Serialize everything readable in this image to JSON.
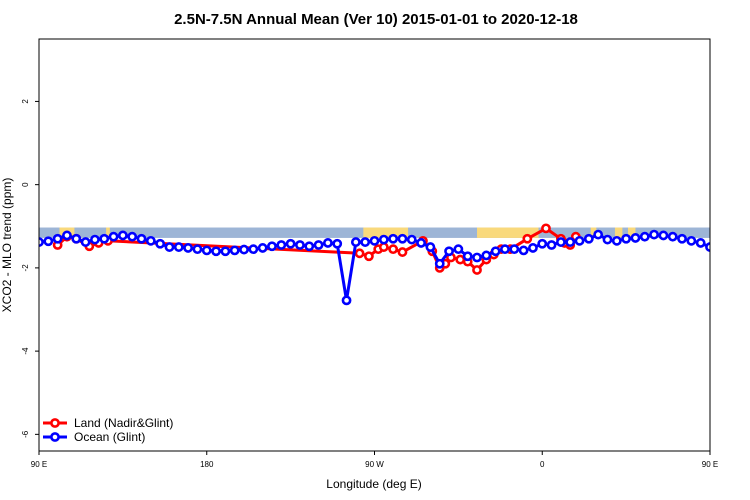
{
  "chart_data": {
    "type": "line",
    "title": "2.5N-7.5N Annual Mean (Ver 10)   2015-01-01 to 2020-12-18",
    "xlabel": "Longitude (deg E)",
    "ylabel": "XCO2 - MLO trend (ppm)",
    "xlim": [
      90,
      450
    ],
    "ylim": [
      -6.4,
      3.5
    ],
    "x_ticks": [
      {
        "value": 90,
        "label": "90 E"
      },
      {
        "value": 180,
        "label": "180"
      },
      {
        "value": 270,
        "label": "90 W"
      },
      {
        "value": 360,
        "label": "0"
      },
      {
        "value": 450,
        "label": "90 E"
      },
      {
        "value": 540,
        "label": "180"
      }
    ],
    "y_ticks": [
      {
        "value": 2,
        "label": "2"
      },
      {
        "value": 0,
        "label": "0"
      },
      {
        "value": -2,
        "label": "-2"
      },
      {
        "value": -4,
        "label": "-4"
      },
      {
        "value": -6,
        "label": "-6"
      }
    ],
    "map_strip": {
      "y_top": -1.03,
      "y_bottom": -1.28,
      "ocean_color": "#9db5d6",
      "land_color": "#f9d97c"
    },
    "legend_position": "bottom-left",
    "series": [
      {
        "name": "Land (Nadir&Glint)",
        "color": "#ff0000",
        "x": [
          100,
          105,
          110,
          117,
          122,
          127,
          262,
          267,
          272,
          275,
          280,
          285,
          296,
          301,
          305,
          308,
          311,
          316,
          320,
          325,
          330,
          334,
          338,
          343,
          352,
          362,
          370,
          372,
          375,
          378
        ],
        "y": [
          -1.45,
          -1.25,
          -1.3,
          -1.48,
          -1.4,
          -1.35,
          -1.65,
          -1.72,
          -1.55,
          -1.5,
          -1.55,
          -1.62,
          -1.35,
          -1.6,
          -2.0,
          -1.9,
          -1.75,
          -1.8,
          -1.85,
          -2.05,
          -1.8,
          -1.68,
          -1.55,
          -1.55,
          -1.3,
          -1.05,
          -1.3,
          -1.4,
          -1.45,
          -1.25
        ]
      },
      {
        "name": "Ocean (Glint)",
        "color": "#0000ff",
        "x": [
          90,
          95,
          100,
          105,
          110,
          115,
          120,
          125,
          130,
          135,
          140,
          145,
          150,
          155,
          160,
          165,
          170,
          175,
          180,
          185,
          190,
          195,
          200,
          205,
          210,
          215,
          220,
          225,
          230,
          235,
          240,
          245,
          250,
          255,
          260,
          265,
          270,
          275,
          280,
          285,
          290,
          295,
          300,
          305,
          310,
          315,
          320,
          325,
          330,
          335,
          340,
          345,
          350,
          355,
          360,
          365,
          370,
          375,
          380,
          385,
          390,
          395,
          400,
          405,
          410,
          415,
          420,
          425,
          430,
          435,
          440,
          445,
          450
        ],
        "y": [
          -1.38,
          -1.36,
          -1.3,
          -1.22,
          -1.3,
          -1.38,
          -1.32,
          -1.3,
          -1.25,
          -1.22,
          -1.25,
          -1.3,
          -1.35,
          -1.42,
          -1.5,
          -1.5,
          -1.52,
          -1.55,
          -1.58,
          -1.6,
          -1.6,
          -1.58,
          -1.56,
          -1.55,
          -1.52,
          -1.48,
          -1.45,
          -1.42,
          -1.45,
          -1.48,
          -1.45,
          -1.4,
          -1.42,
          -2.78,
          -1.38,
          -1.38,
          -1.35,
          -1.32,
          -1.3,
          -1.3,
          -1.32,
          -1.4,
          -1.5,
          -1.9,
          -1.6,
          -1.55,
          -1.72,
          -1.75,
          -1.7,
          -1.6,
          -1.55,
          -1.55,
          -1.58,
          -1.52,
          -1.42,
          -1.45,
          -1.38,
          -1.38,
          -1.35,
          -1.3,
          -1.2,
          -1.32,
          -1.35,
          -1.3,
          -1.28,
          -1.25,
          -1.2,
          -1.22,
          -1.25,
          -1.3,
          -1.35,
          -1.4,
          -1.5
        ]
      }
    ]
  }
}
